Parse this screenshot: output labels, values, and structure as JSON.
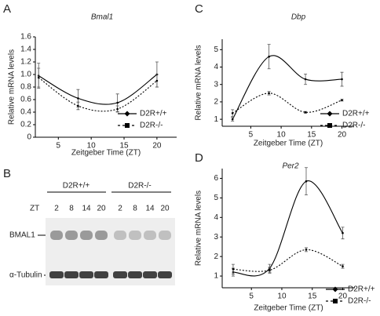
{
  "panels": [
    "A",
    "B",
    "C",
    "D"
  ],
  "chart_data": [
    {
      "type": "line",
      "title": "Bmal1",
      "x_label": "Zeitgeber Time (ZT)",
      "y_label": "Relative mRNA levels",
      "x": [
        2,
        8,
        14,
        20
      ],
      "xlim": [
        1.5,
        23
      ],
      "xticks": [
        5,
        10,
        15,
        20
      ],
      "ylim": [
        0,
        1.6
      ],
      "yticks": [
        0,
        0.2,
        0.4,
        0.6,
        0.8,
        {
          "value": 1,
          "label": "1.0"
        },
        1.2,
        1.4,
        1.6
      ],
      "legend": "lower-right",
      "grid": false,
      "series": [
        {
          "name": "D2R+/+",
          "color": "#000000",
          "line_style": "solid",
          "marker": "diamond",
          "values": [
            0.98,
            0.62,
            0.55,
            1.0
          ],
          "errors": [
            0.2,
            0.14,
            0.14,
            0.2
          ]
        },
        {
          "name": "D2R-/-",
          "color": "#000000",
          "line_style": "dotted",
          "marker": "square",
          "values": [
            0.95,
            0.5,
            0.45,
            0.9
          ],
          "errors": [
            0.15,
            0.06,
            0.05,
            0.1
          ]
        }
      ]
    },
    {
      "type": "line",
      "title": "Dbp",
      "x_label": "Zeitgeber Time (ZT)",
      "y_label": "Relative mRNA levels",
      "x": [
        2,
        8,
        14,
        20
      ],
      "xlim": [
        0.3,
        22
      ],
      "xticks": [
        5,
        10,
        15,
        20
      ],
      "ylim": [
        0.6,
        5.6
      ],
      "yticks": [
        1,
        2,
        3,
        4,
        5
      ],
      "legend": "lower-right",
      "grid": false,
      "series": [
        {
          "name": "D2R+/+",
          "color": "#000000",
          "line_style": "solid",
          "marker": "diamond",
          "values": [
            1.0,
            4.6,
            3.3,
            3.3
          ],
          "errors": [
            0.1,
            0.7,
            0.3,
            0.4
          ]
        },
        {
          "name": "D2R-/-",
          "color": "#000000",
          "line_style": "dotted",
          "marker": "square",
          "values": [
            1.35,
            2.5,
            1.4,
            2.1
          ],
          "errors": [
            0.2,
            0.1,
            0.05,
            0.05
          ]
        }
      ]
    },
    {
      "type": "line",
      "title": "Per2",
      "x_label": "Zeitgeber Time (ZT)",
      "y_label": "Relative mRNA levels",
      "x": [
        2,
        8,
        14,
        20
      ],
      "xlim": [
        0.2,
        22
      ],
      "xticks": [
        5,
        10,
        15,
        20
      ],
      "ylim": [
        0.4,
        6.5
      ],
      "yticks": [
        1,
        2,
        3,
        4,
        5,
        6
      ],
      "legend": "lower-right",
      "grid": false,
      "series": [
        {
          "name": "D2R+/+",
          "color": "#000000",
          "line_style": "solid",
          "marker": "diamond",
          "values": [
            1.2,
            1.4,
            5.85,
            3.2
          ],
          "errors": [
            0.2,
            0.2,
            0.7,
            0.3
          ]
        },
        {
          "name": "D2R-/-",
          "color": "#000000",
          "line_style": "dotted",
          "marker": "square",
          "values": [
            1.35,
            1.3,
            2.35,
            1.5
          ],
          "errors": [
            0.25,
            0.15,
            0.1,
            0.1
          ]
        }
      ]
    }
  ],
  "blot": {
    "groups": [
      "D2R+/+",
      "D2R-/-"
    ],
    "zt_label": "ZT",
    "lanes": [
      "2",
      "8",
      "14",
      "20",
      "2",
      "8",
      "14",
      "20"
    ],
    "rows": [
      "BMAL1",
      "α-Tubulin"
    ]
  }
}
